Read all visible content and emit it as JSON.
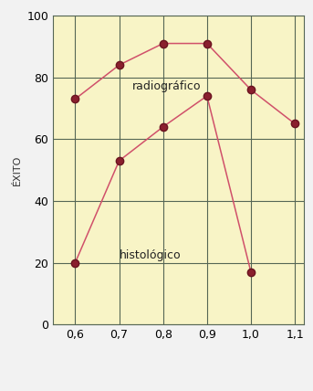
{
  "chart_data": {
    "type": "line",
    "y_label": "ÉXITO",
    "xlim": [
      0.55,
      1.12
    ],
    "xticks": [
      {
        "value": 0.6,
        "label": "0,6"
      },
      {
        "value": 0.7,
        "label": "0,7"
      },
      {
        "value": 0.8,
        "label": "0,8"
      },
      {
        "value": 0.9,
        "label": "0,9"
      },
      {
        "value": 1.0,
        "label": "1,0"
      },
      {
        "value": 1.1,
        "label": "1,1"
      }
    ],
    "ylim": [
      0,
      100
    ],
    "yticks": [
      0,
      20,
      40,
      60,
      80,
      100
    ],
    "grid": true,
    "series": [
      {
        "name": "radiográfico",
        "color": "#d0506a",
        "marker": "o",
        "line_style": "solid",
        "x": [
          0.6,
          0.7,
          0.8,
          0.9,
          1.0,
          1.1
        ],
        "values": [
          73,
          84,
          91,
          91,
          76,
          65
        ]
      },
      {
        "name": "histológico",
        "color": "#d0506a",
        "marker": "o",
        "line_style": "solid",
        "x": [
          0.6,
          0.7,
          0.8,
          0.9,
          1.0
        ],
        "values": [
          20,
          53,
          64,
          74,
          17
        ]
      }
    ]
  }
}
